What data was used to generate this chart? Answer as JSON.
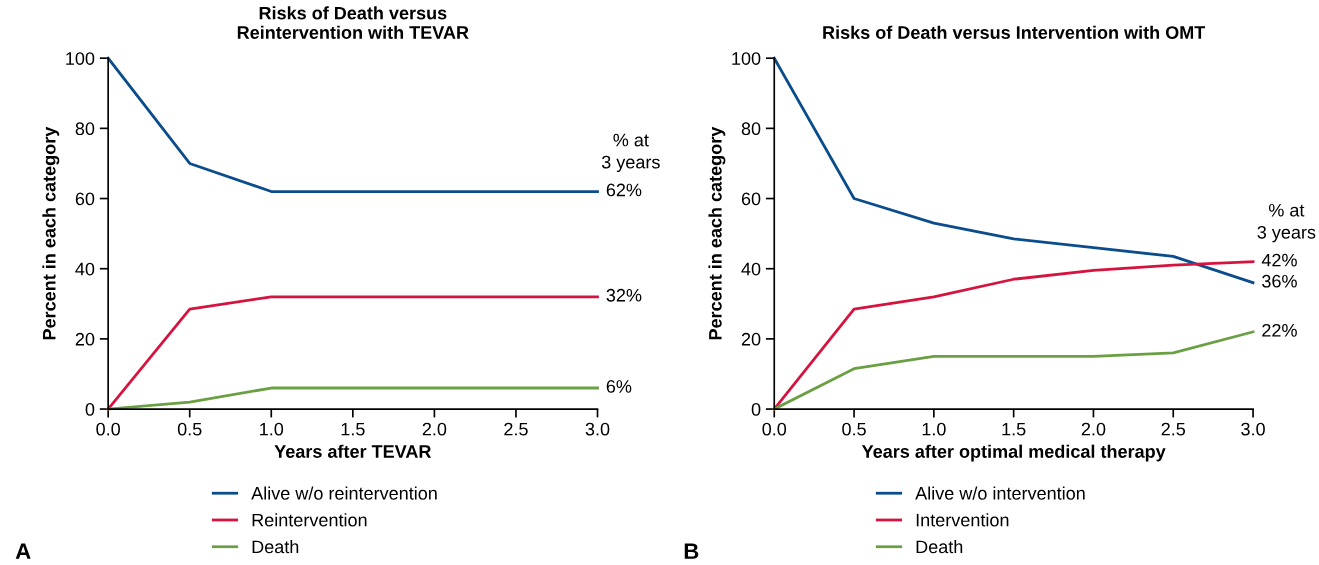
{
  "chart_data": [
    {
      "type": "line",
      "title": "Risks of Death versus\nReintervention with TEVAR",
      "xlabel": "Years after TEVAR",
      "ylabel": "Percent in each category",
      "x": [
        0,
        0.5,
        1.0,
        1.5,
        2.0,
        2.5,
        3.0
      ],
      "series": [
        {
          "name": "Alive w/o reintervention",
          "color": "#0b4c8c",
          "values": [
            100,
            70,
            62,
            62,
            62,
            62,
            62
          ],
          "value_labels": [
            null,
            null,
            null,
            null,
            null,
            null,
            "62%"
          ]
        },
        {
          "name": "Reintervention",
          "color": "#d6133f",
          "values": [
            0,
            28.5,
            32,
            32,
            32,
            32,
            32
          ],
          "value_labels": [
            null,
            null,
            null,
            null,
            null,
            null,
            "32%"
          ]
        },
        {
          "name": "Death",
          "color": "#6aa043",
          "values": [
            0,
            2,
            6,
            6,
            6,
            6,
            6
          ],
          "value_labels": [
            null,
            null,
            null,
            null,
            null,
            null,
            "6%"
          ]
        }
      ],
      "xlim": [
        0,
        3.0
      ],
      "xticks": [
        {
          "value": 0,
          "label": "0.0"
        },
        0.5,
        {
          "value": 1,
          "label": "1.0"
        },
        1.5,
        {
          "value": 2,
          "label": "2.0"
        },
        2.5,
        {
          "value": 3,
          "label": "3.0"
        }
      ],
      "ylim": [
        0,
        100
      ],
      "yticks": [
        0,
        20,
        40,
        60,
        80,
        100
      ],
      "grid": false,
      "legend": "bottom",
      "marker": "none",
      "line_style": "solid",
      "annotations": [
        "% at\n3 years",
        "A"
      ]
    },
    {
      "type": "line",
      "title": "Risks of Death versus Intervention with OMT",
      "xlabel": "Years after optimal medical therapy",
      "ylabel": "Percent in each category",
      "x": [
        0,
        0.5,
        1.0,
        1.5,
        2.0,
        2.5,
        3.0
      ],
      "series": [
        {
          "name": "Alive w/o intervention",
          "color": "#0b4c8c",
          "values": [
            100,
            60,
            53,
            48.5,
            46,
            43.5,
            36
          ],
          "value_labels": [
            null,
            null,
            null,
            null,
            null,
            null,
            "36%"
          ]
        },
        {
          "name": "Intervention",
          "color": "#d6133f",
          "values": [
            0,
            28.5,
            32,
            37,
            39.5,
            41,
            42
          ],
          "value_labels": [
            null,
            null,
            null,
            null,
            null,
            null,
            "42%"
          ]
        },
        {
          "name": "Death",
          "color": "#6aa043",
          "values": [
            0,
            11.5,
            15,
            15,
            15,
            16,
            22
          ],
          "value_labels": [
            null,
            null,
            null,
            null,
            null,
            null,
            "22%"
          ]
        }
      ],
      "xlim": [
        0,
        3.0
      ],
      "xticks": [
        {
          "value": 0,
          "label": "0.0"
        },
        0.5,
        {
          "value": 1,
          "label": "1.0"
        },
        1.5,
        {
          "value": 2,
          "label": "2.0"
        },
        2.5,
        {
          "value": 3,
          "label": "3.0"
        }
      ],
      "ylim": [
        0,
        100
      ],
      "yticks": [
        0,
        20,
        40,
        60,
        80,
        100
      ],
      "grid": false,
      "legend": "bottom",
      "marker": "none",
      "line_style": "solid",
      "annotations": [
        "% at\n3 years",
        "B"
      ]
    }
  ]
}
